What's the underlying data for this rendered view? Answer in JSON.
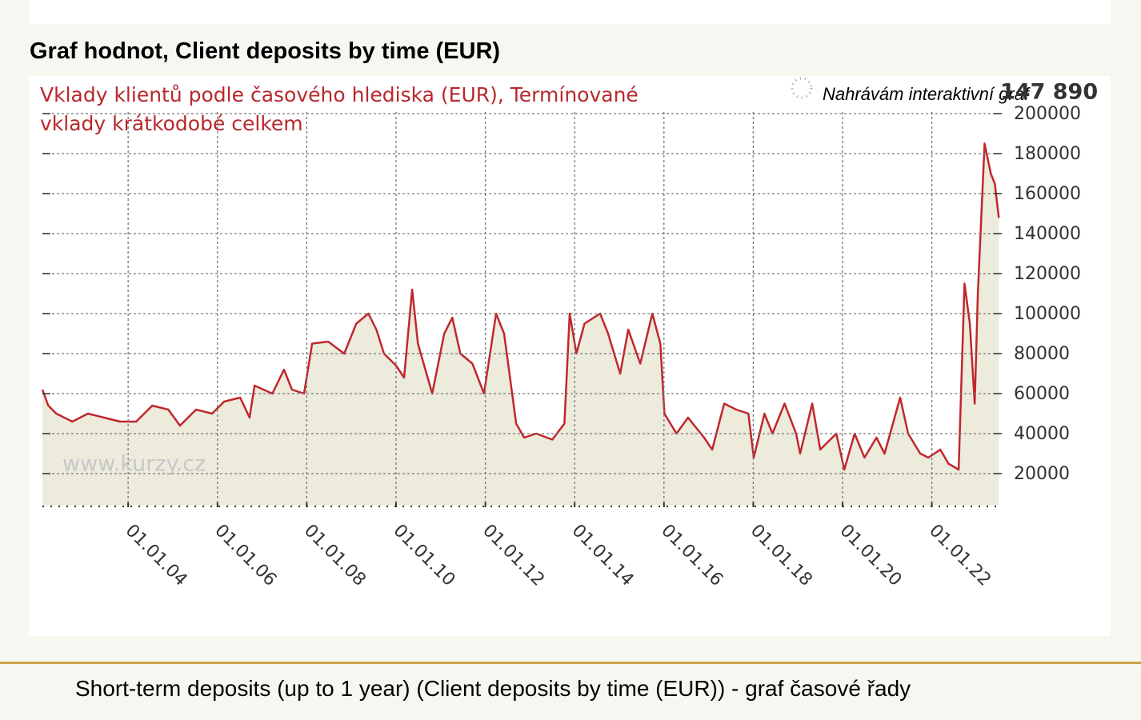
{
  "header": {
    "title": "Graf hodnot, Client deposits by time (EUR)"
  },
  "chart_data": {
    "type": "line",
    "title_lines": [
      "Vklady klientů podle časového hlediska (EUR), Termínované",
      "vklady krátkodobé celkem"
    ],
    "watermark": "www.kurzy.cz",
    "loading_text": "Nahrávám interaktivní graf",
    "end_label": "147 890",
    "color": "#c1272d",
    "area_color": "#ecebdc",
    "grid": true,
    "x": [
      2002.08,
      2002.21,
      2002.39,
      2002.75,
      2003.1,
      2003.46,
      2003.82,
      2004.18,
      2004.54,
      2004.9,
      2005.16,
      2005.52,
      2005.88,
      2006.15,
      2006.51,
      2006.72,
      2006.83,
      2007.23,
      2007.49,
      2007.67,
      2007.94,
      2008.12,
      2008.48,
      2008.84,
      2009.11,
      2009.38,
      2009.56,
      2009.73,
      2010.0,
      2010.18,
      2010.36,
      2010.49,
      2010.81,
      2011.08,
      2011.26,
      2011.44,
      2011.71,
      2011.97,
      2012.24,
      2012.42,
      2012.69,
      2012.87,
      2013.14,
      2013.5,
      2013.77,
      2013.89,
      2014.04,
      2014.22,
      2014.57,
      2014.75,
      2015.02,
      2015.2,
      2015.47,
      2015.74,
      2015.92,
      2016.01,
      2016.28,
      2016.54,
      2016.9,
      2017.08,
      2017.35,
      2017.62,
      2017.89,
      2018.01,
      2018.25,
      2018.43,
      2018.7,
      2018.96,
      2019.05,
      2019.32,
      2019.5,
      2019.86,
      2020.04,
      2020.27,
      2020.49,
      2020.76,
      2020.94,
      2021.29,
      2021.47,
      2021.74,
      2021.92,
      2022.19,
      2022.37,
      2022.6,
      2022.73,
      2022.85,
      2022.96,
      2023.03,
      2023.18,
      2023.32,
      2023.41,
      2023.5
    ],
    "values": [
      62000,
      54000,
      50000,
      46000,
      50000,
      48000,
      46000,
      46000,
      54000,
      52000,
      44000,
      52000,
      50000,
      56000,
      58000,
      48000,
      64000,
      60000,
      72000,
      62000,
      60000,
      85000,
      86000,
      80000,
      95000,
      100000,
      92000,
      80000,
      74000,
      68000,
      112000,
      85000,
      60000,
      90000,
      98000,
      80000,
      75000,
      60000,
      100000,
      90000,
      45000,
      38000,
      40000,
      37000,
      45000,
      100000,
      80000,
      95000,
      100000,
      90000,
      70000,
      92000,
      75000,
      100000,
      85000,
      50000,
      40000,
      48000,
      38000,
      32000,
      55000,
      52000,
      50000,
      28000,
      50000,
      40000,
      55000,
      40000,
      30000,
      55000,
      32000,
      40000,
      22000,
      40000,
      28000,
      38000,
      30000,
      58000,
      40000,
      30000,
      28000,
      32000,
      25000,
      22000,
      115000,
      95000,
      55000,
      110000,
      185000,
      170000,
      165000,
      147890
    ],
    "xlim": [
      2002.08,
      2023.53
    ],
    "xticks": [
      {
        "value": 2004,
        "label": "01.01.04"
      },
      {
        "value": 2006,
        "label": "01.01.06"
      },
      {
        "value": 2008,
        "label": "01.01.08"
      },
      {
        "value": 2010,
        "label": "01.01.10"
      },
      {
        "value": 2012,
        "label": "01.01.12"
      },
      {
        "value": 2014,
        "label": "01.01.14"
      },
      {
        "value": 2016,
        "label": "01.01.16"
      },
      {
        "value": 2018,
        "label": "01.01.18"
      },
      {
        "value": 2020,
        "label": "01.01.20"
      },
      {
        "value": 2022,
        "label": "01.01.22"
      }
    ],
    "ylim": [
      4000,
      200000
    ],
    "yticks": [
      20000,
      40000,
      60000,
      80000,
      100000,
      120000,
      140000,
      160000,
      180000,
      200000
    ]
  },
  "caption": "Short-term deposits (up to 1 year) (Client deposits by time (EUR)) - graf časové řady"
}
